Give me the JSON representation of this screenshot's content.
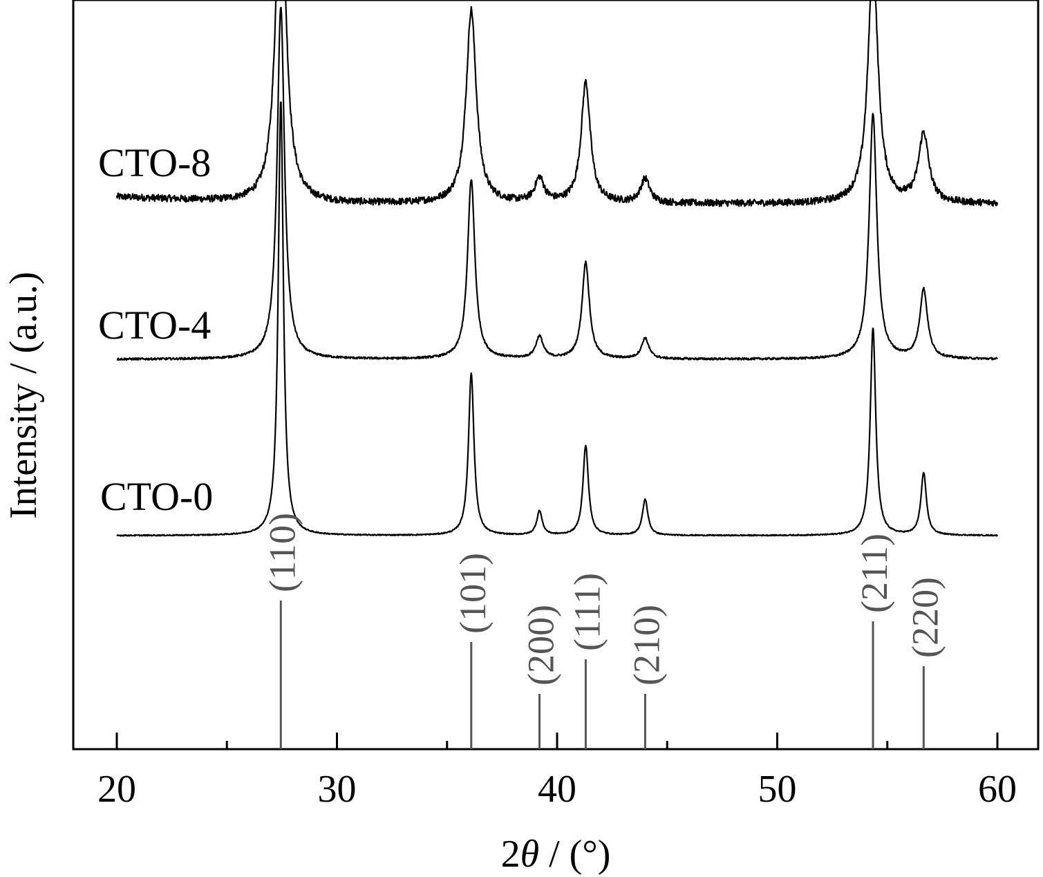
{
  "chart_data": {
    "type": "line",
    "xlabel_parts": {
      "prefix": "2",
      "symbol": "θ",
      "suffix": " / (°)"
    },
    "ylabel": "Intensity / (a.u.)",
    "xlim": [
      18,
      62
    ],
    "x_ticks": [
      20,
      30,
      40,
      50,
      60
    ],
    "x_ticks_minor": [
      25,
      35,
      45,
      55
    ],
    "x_range": [
      20,
      60
    ],
    "y_ticks": false,
    "grid": false,
    "legend": "none",
    "line_color": "#000000",
    "series": [
      {
        "name": "CTO-8",
        "baseline": 480,
        "noise": 5,
        "peaks": [
          {
            "x": 27.45,
            "height": 490,
            "width": 0.55
          },
          {
            "x": 36.1,
            "height": 280,
            "width": 0.55
          },
          {
            "x": 39.2,
            "height": 35,
            "width": 0.5
          },
          {
            "x": 41.3,
            "height": 175,
            "width": 0.5
          },
          {
            "x": 44.0,
            "height": 35,
            "width": 0.5
          },
          {
            "x": 54.35,
            "height": 350,
            "width": 0.55
          },
          {
            "x": 56.65,
            "height": 100,
            "width": 0.55
          }
        ]
      },
      {
        "name": "CTO-4",
        "baseline": 255,
        "noise": 1.5,
        "peaks": [
          {
            "x": 27.45,
            "height": 510,
            "width": 0.4
          },
          {
            "x": 36.1,
            "height": 260,
            "width": 0.4
          },
          {
            "x": 39.2,
            "height": 32,
            "width": 0.4
          },
          {
            "x": 41.3,
            "height": 140,
            "width": 0.4
          },
          {
            "x": 44.0,
            "height": 30,
            "width": 0.4
          },
          {
            "x": 54.35,
            "height": 355,
            "width": 0.42
          },
          {
            "x": 56.65,
            "height": 100,
            "width": 0.42
          }
        ]
      },
      {
        "name": "CTO-0",
        "baseline": 0,
        "noise": 0.8,
        "peaks": [
          {
            "x": 27.45,
            "height": 630,
            "width": 0.28
          },
          {
            "x": 36.1,
            "height": 235,
            "width": 0.3
          },
          {
            "x": 39.2,
            "height": 35,
            "width": 0.3
          },
          {
            "x": 41.3,
            "height": 130,
            "width": 0.3
          },
          {
            "x": 44.0,
            "height": 52,
            "width": 0.3
          },
          {
            "x": 54.35,
            "height": 300,
            "width": 0.3
          },
          {
            "x": 56.65,
            "height": 90,
            "width": 0.3
          }
        ]
      }
    ],
    "reference_lines": {
      "color": "#555555",
      "items": [
        {
          "x": 27.45,
          "label": "(110)",
          "length": 215
        },
        {
          "x": 36.1,
          "label": "(101)",
          "length": 155
        },
        {
          "x": 39.2,
          "label": "(200)",
          "length": 80
        },
        {
          "x": 41.3,
          "label": "(111)",
          "length": 130
        },
        {
          "x": 44.0,
          "label": "(210)",
          "length": 80
        },
        {
          "x": 54.35,
          "label": "(211)",
          "length": 185
        },
        {
          "x": 56.65,
          "label": "(220)",
          "length": 120
        }
      ]
    }
  }
}
